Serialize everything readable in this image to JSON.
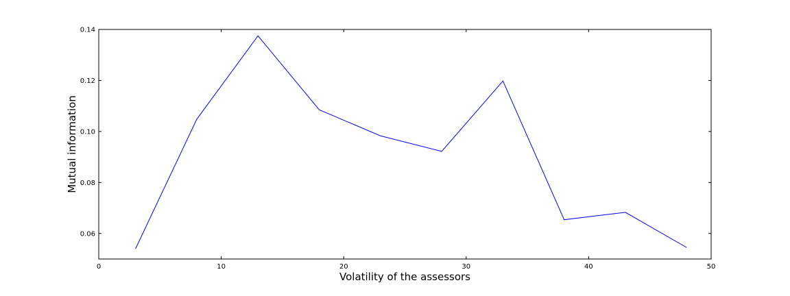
{
  "chart_data": {
    "type": "line",
    "title": "",
    "xlabel": "Volatility of the assessors",
    "ylabel": "Mutual information",
    "xlim": [
      0,
      50
    ],
    "ylim": [
      0.05,
      0.14
    ],
    "xticks": [
      0,
      10,
      20,
      30,
      40,
      50
    ],
    "xtick_labels": [
      "0",
      "10",
      "20",
      "30",
      "40",
      "50"
    ],
    "yticks": [
      0.06,
      0.08,
      0.1,
      0.12,
      0.14
    ],
    "ytick_labels": [
      "0.06",
      "0.08",
      "0.10",
      "0.12",
      "0.14"
    ],
    "grid": false,
    "series": [
      {
        "color": "#0000ff",
        "x": [
          3,
          8,
          13,
          18,
          23,
          28,
          33,
          38,
          43,
          48
        ],
        "y": [
          0.054,
          0.1048,
          0.1375,
          0.1085,
          0.0983,
          0.0922,
          0.1198,
          0.0654,
          0.0683,
          0.0545
        ]
      }
    ]
  }
}
